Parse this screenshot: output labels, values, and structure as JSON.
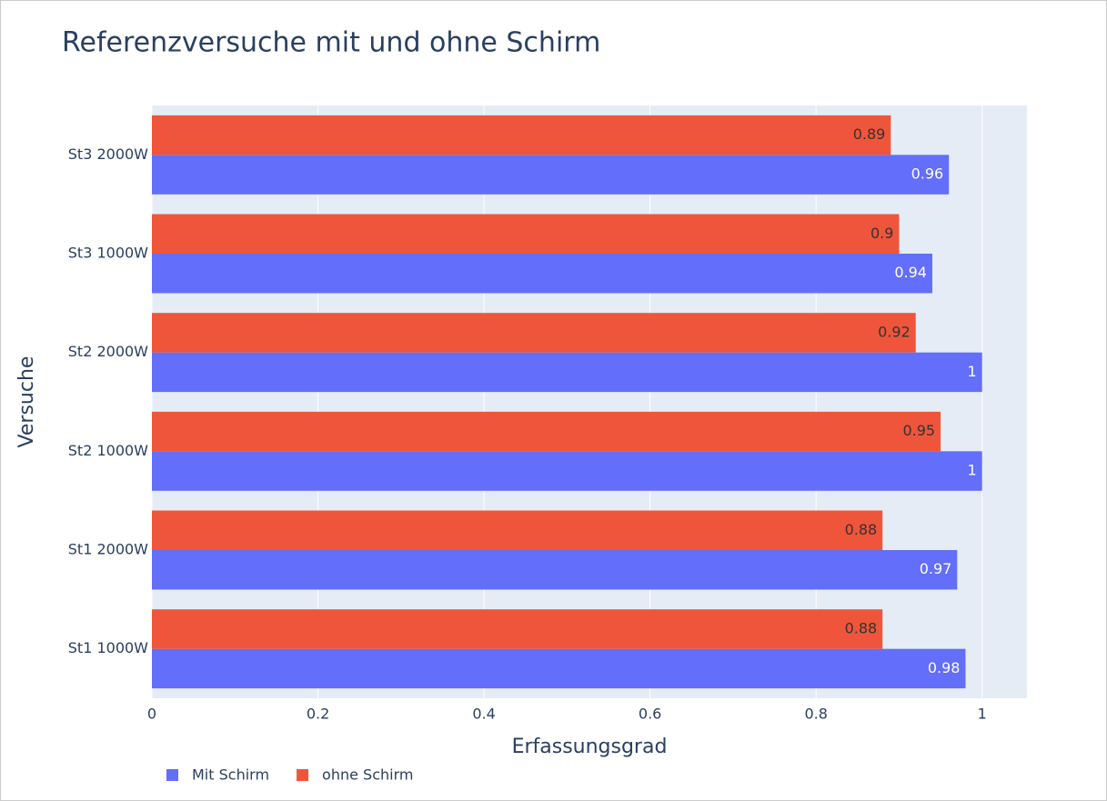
{
  "chart_data": {
    "type": "bar",
    "orientation": "horizontal",
    "title": "Referenzversuche mit und ohne Schirm",
    "x_label": "Erfassungsgrad",
    "y_label": "Versuche",
    "categories": [
      "St1 1000W",
      "St1 2000W",
      "St2 1000W",
      "St2 2000W",
      "St3 1000W",
      "St3 2000W"
    ],
    "series": [
      {
        "name": "Mit Schirm",
        "color": "#636efa",
        "values": [
          0.98,
          0.97,
          1,
          1,
          0.94,
          0.96
        ]
      },
      {
        "name": "ohne Schirm",
        "color": "#ef553b",
        "values": [
          0.88,
          0.88,
          0.95,
          0.92,
          0.9,
          0.89
        ]
      }
    ],
    "xlim": [
      0,
      1.054
    ],
    "xticks": [
      0,
      0.2,
      0.4,
      0.6,
      0.8,
      1
    ],
    "grid": true,
    "legend": "bottom-left"
  }
}
